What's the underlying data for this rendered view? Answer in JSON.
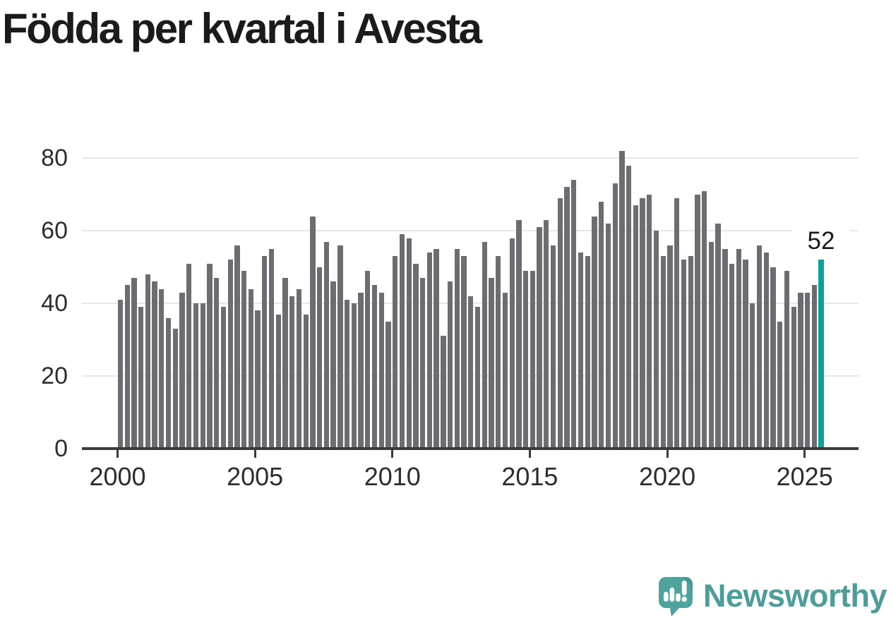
{
  "title": "Födda per kvartal i Avesta",
  "annotation": {
    "last_value_label": "52"
  },
  "branding": {
    "name": "Newsworthy"
  },
  "colors": {
    "bar": "#6d6c71",
    "highlight": "#0aa09c",
    "gridline": "#e7e7e9",
    "axis": "#3b3b3b",
    "tick_text": "#2d2d2d",
    "title_text": "#1b1b1b",
    "brand": "#4d9d99"
  },
  "chart_data": {
    "type": "bar",
    "title": "Födda per kvartal i Avesta",
    "x_range": {
      "start": "2000 Q1",
      "end": "2025 Q3",
      "frequency": "quarterly"
    },
    "x_tick_labels": [
      "2000",
      "2005",
      "2010",
      "2015",
      "2020",
      "2025"
    ],
    "y_ticks": [
      0,
      20,
      40,
      60,
      80
    ],
    "y_tick_labels": [
      "0",
      "20",
      "40",
      "60",
      "80"
    ],
    "ylim": [
      0,
      86
    ],
    "grid": "horizontal",
    "legend": "none",
    "highlight_last_bar": true,
    "last_value_label": "52",
    "values": [
      41,
      45,
      47,
      39,
      48,
      46,
      44,
      36,
      33,
      43,
      51,
      40,
      40,
      51,
      47,
      39,
      52,
      56,
      49,
      44,
      38,
      53,
      55,
      37,
      47,
      42,
      44,
      37,
      64,
      50,
      57,
      46,
      56,
      41,
      40,
      43,
      49,
      45,
      43,
      35,
      53,
      59,
      58,
      51,
      47,
      54,
      55,
      31,
      46,
      55,
      53,
      42,
      39,
      57,
      47,
      53,
      43,
      58,
      63,
      49,
      49,
      61,
      63,
      56,
      69,
      72,
      74,
      54,
      53,
      64,
      68,
      62,
      73,
      82,
      78,
      67,
      69,
      70,
      60,
      53,
      56,
      69,
      52,
      53,
      70,
      71,
      57,
      62,
      55,
      51,
      55,
      52,
      40,
      56,
      54,
      50,
      35,
      49,
      39,
      43,
      43,
      45,
      52
    ]
  }
}
